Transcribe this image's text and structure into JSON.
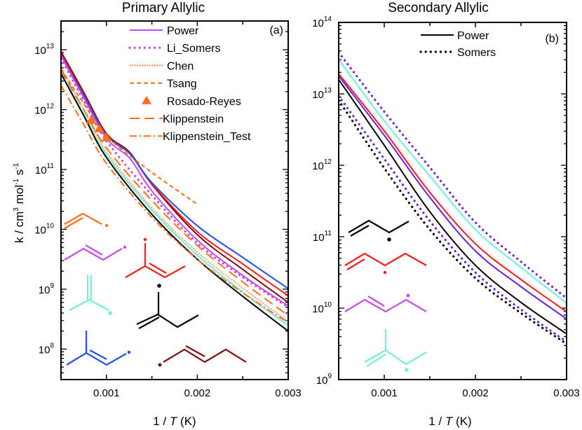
{
  "chart_data": [
    {
      "type": "line",
      "panel_label": "(a)",
      "title": "Primary Allylic",
      "xlabel": "1 / T (K)",
      "ylabel": "k / cm3 mol-1 s-1",
      "ylabel_parts": {
        "pre": "k / cm",
        "e1": "3",
        "mid": " mol",
        "e2": "-1",
        "mid2": " s",
        "e3": "-1"
      },
      "xlabel_parts": {
        "pre": "1 / ",
        "ital": "T",
        "post": " (K)"
      },
      "xlim": [
        0.0005,
        0.003
      ],
      "ylim_log10": [
        7.49,
        13.48
      ],
      "y_scale": "log",
      "xticks": [
        "0.001",
        "0.002",
        "0.003"
      ],
      "xtick_values": [
        0.001,
        0.002,
        0.003
      ],
      "yticks": [
        {
          "base": "10",
          "exp": "8"
        },
        {
          "base": "10",
          "exp": "9"
        },
        {
          "base": "10",
          "exp": "10"
        },
        {
          "base": "10",
          "exp": "11"
        },
        {
          "base": "10",
          "exp": "12"
        },
        {
          "base": "10",
          "exp": "13"
        }
      ],
      "ytick_values": [
        8,
        9,
        10,
        11,
        12,
        13
      ],
      "legend": [
        {
          "label": "Power",
          "color": "#c44cf2",
          "style": "solid"
        },
        {
          "label": "Li_Somers",
          "color": "#c44cf2",
          "style": "dot"
        },
        {
          "label": "Chen",
          "color": "#ff6f1a",
          "style": "finedot"
        },
        {
          "label": "Tsang",
          "color": "#ff6f1a",
          "style": "dash"
        },
        {
          "label": "Rosado-Reyes",
          "color": "#ff6f1a",
          "style": "triangle"
        },
        {
          "label": "Klippenstein",
          "color": "#ff6f1a",
          "style": "longdash"
        },
        {
          "label": "Klippenstein_Test",
          "color": "#ff6f1a",
          "style": "dashdot"
        }
      ],
      "legend_position": "top-right",
      "series": [
        {
          "name": "Power-maroon",
          "color": "#7a0c0c",
          "style": "solid",
          "x": [
            0.0005,
            0.00075,
            0.001,
            0.00126,
            0.0015,
            0.002,
            0.0025,
            0.003
          ],
          "log10_k": [
            12.97,
            12.29,
            11.6,
            11.28,
            10.75,
            9.91,
            9.33,
            8.78
          ]
        },
        {
          "name": "Power-red",
          "color": "#ff1a1a",
          "style": "solid",
          "x": [
            0.0005,
            0.00075,
            0.001,
            0.00126,
            0.0015,
            0.002,
            0.0025,
            0.003
          ],
          "log10_k": [
            12.92,
            12.25,
            11.58,
            11.26,
            10.76,
            9.96,
            9.42,
            8.89
          ]
        },
        {
          "name": "Power-blue",
          "color": "#1f4ff5",
          "style": "solid",
          "x": [
            0.0005,
            0.00075,
            0.001,
            0.00126,
            0.0015,
            0.002,
            0.0025,
            0.003
          ],
          "log10_k": [
            12.9,
            12.23,
            11.57,
            11.26,
            10.78,
            10.06,
            9.53,
            9.01
          ]
        },
        {
          "name": "Power-purple",
          "color": "#c44cf2",
          "style": "solid",
          "x": [
            0.0005,
            0.00075,
            0.001,
            0.00126,
            0.0015,
            0.002,
            0.0025,
            0.003
          ],
          "log10_k": [
            12.9,
            12.2,
            11.52,
            11.18,
            10.64,
            9.82,
            9.23,
            8.72
          ]
        },
        {
          "name": "Li_Somers",
          "color": "#c44cf2",
          "style": "dot",
          "x": [
            0.0005,
            0.00075,
            0.001,
            0.0015,
            0.002,
            0.0025,
            0.003
          ],
          "log10_k": [
            12.85,
            12.15,
            11.48,
            10.57,
            9.77,
            9.2,
            8.7
          ]
        },
        {
          "name": "Power-teal",
          "color": "#6ff0d8",
          "style": "solid",
          "x": [
            0.0005,
            0.00075,
            0.001,
            0.0015,
            0.002,
            0.0025,
            0.003
          ],
          "log10_k": [
            12.62,
            11.93,
            11.25,
            10.32,
            9.57,
            8.95,
            8.39
          ]
        },
        {
          "name": "Power-black",
          "color": "#000000",
          "style": "solid",
          "x": [
            0.0005,
            0.00075,
            0.001,
            0.0015,
            0.002,
            0.0025,
            0.003
          ],
          "log10_k": [
            12.6,
            11.9,
            11.2,
            10.25,
            9.5,
            8.88,
            8.3
          ]
        },
        {
          "name": "Chen",
          "color": "#ff6f1a",
          "style": "finedot",
          "x": [
            0.0005,
            0.00075,
            0.001,
            0.0015,
            0.002,
            0.0025,
            0.003
          ],
          "log10_k": [
            12.7,
            12.0,
            11.3,
            10.36,
            9.62,
            9.02,
            8.46
          ]
        },
        {
          "name": "Tsang",
          "color": "#ff6f1a",
          "style": "dash",
          "x": [
            0.0005,
            0.00075,
            0.001,
            0.0015,
            0.002
          ],
          "log10_k": [
            12.68,
            12.1,
            11.56,
            10.95,
            10.42
          ]
        },
        {
          "name": "Klippenstein",
          "color": "#ff6f1a",
          "style": "longdash",
          "x": [
            0.0005,
            0.00075,
            0.001,
            0.0015,
            0.002,
            0.0025,
            0.003
          ],
          "log10_k": [
            12.66,
            12.0,
            11.36,
            10.48,
            9.73,
            9.12,
            8.56
          ]
        },
        {
          "name": "Klippenstein_Test",
          "color": "#ff6f1a",
          "style": "dashdot",
          "x": [
            0.0005,
            0.00075,
            0.001,
            0.0015,
            0.002,
            0.0025,
            0.003
          ],
          "log10_k": [
            12.4,
            11.75,
            11.1,
            10.2,
            9.5,
            8.94,
            8.44
          ]
        }
      ],
      "points": {
        "name": "Rosado-Reyes",
        "color": "#ff6f1a",
        "x": [
          0.00083,
          0.00092,
          0.001
        ],
        "log10_k": [
          11.82,
          11.68,
          11.53
        ]
      }
    },
    {
      "type": "line",
      "panel_label": "(b)",
      "title": "Secondary Allylic",
      "xlabel": "1 / T (K)",
      "xlabel_parts": {
        "pre": "1 / ",
        "ital": "T",
        "post": " (K)"
      },
      "xlim": [
        0.0005,
        0.003
      ],
      "ylim_log10": [
        9,
        14
      ],
      "y_scale": "log",
      "xticks": [
        "0.001",
        "0.002",
        "0.003"
      ],
      "xtick_values": [
        0.001,
        0.002,
        0.003
      ],
      "yticks": [
        {
          "base": "10",
          "exp": "9"
        },
        {
          "base": "10",
          "exp": "10"
        },
        {
          "base": "10",
          "exp": "11"
        },
        {
          "base": "10",
          "exp": "12"
        },
        {
          "base": "10",
          "exp": "13"
        },
        {
          "base": "10",
          "exp": "14"
        }
      ],
      "ytick_values": [
        9,
        10,
        11,
        12,
        13,
        14
      ],
      "legend": [
        {
          "label": "Power",
          "color": "#000000",
          "style": "solid"
        },
        {
          "label": "Somers",
          "color": "#000000",
          "style": "dot"
        }
      ],
      "legend_position": "top-right",
      "series": [
        {
          "name": "Somers-purple-upper",
          "color": "#6a1fe0",
          "style": "dot",
          "x": [
            0.0005,
            0.001,
            0.0015,
            0.002,
            0.0025,
            0.003
          ],
          "log10_k": [
            13.58,
            12.75,
            11.97,
            11.2,
            10.65,
            10.14
          ]
        },
        {
          "name": "Power-teal",
          "color": "#6ff0d8",
          "style": "solid",
          "x": [
            0.0005,
            0.001,
            0.0015,
            0.002,
            0.0025,
            0.003
          ],
          "log10_k": [
            13.48,
            12.62,
            11.85,
            11.1,
            10.57,
            10.07
          ]
        },
        {
          "name": "Power-red",
          "color": "#ff1a1a",
          "style": "solid",
          "x": [
            0.0005,
            0.001,
            0.0015,
            0.002,
            0.0025,
            0.003
          ],
          "log10_k": [
            13.28,
            12.48,
            11.62,
            10.9,
            10.4,
            9.95
          ]
        },
        {
          "name": "Power-purple",
          "color": "#6a1fe0",
          "style": "solid",
          "x": [
            0.0005,
            0.001,
            0.0015,
            0.002,
            0.0025,
            0.003
          ],
          "log10_k": [
            13.25,
            12.42,
            11.55,
            10.8,
            10.3,
            9.85
          ]
        },
        {
          "name": "Power-black",
          "color": "#000000",
          "style": "solid",
          "x": [
            0.0005,
            0.001,
            0.0015,
            0.002,
            0.0025,
            0.003
          ],
          "log10_k": [
            13.2,
            12.28,
            11.35,
            10.6,
            10.08,
            9.64
          ]
        },
        {
          "name": "Somers-purple-lower",
          "color": "#6a1fe0",
          "style": "dot",
          "x": [
            0.0005,
            0.001,
            0.0015,
            0.002,
            0.0025,
            0.003
          ],
          "log10_k": [
            12.97,
            12.09,
            11.22,
            10.5,
            9.98,
            9.53
          ]
        },
        {
          "name": "Somers-black",
          "color": "#000000",
          "style": "dot",
          "x": [
            0.0005,
            0.001,
            0.0015,
            0.002,
            0.0025,
            0.003
          ],
          "log10_k": [
            12.91,
            11.96,
            11.1,
            10.42,
            9.93,
            9.5
          ]
        }
      ]
    }
  ]
}
